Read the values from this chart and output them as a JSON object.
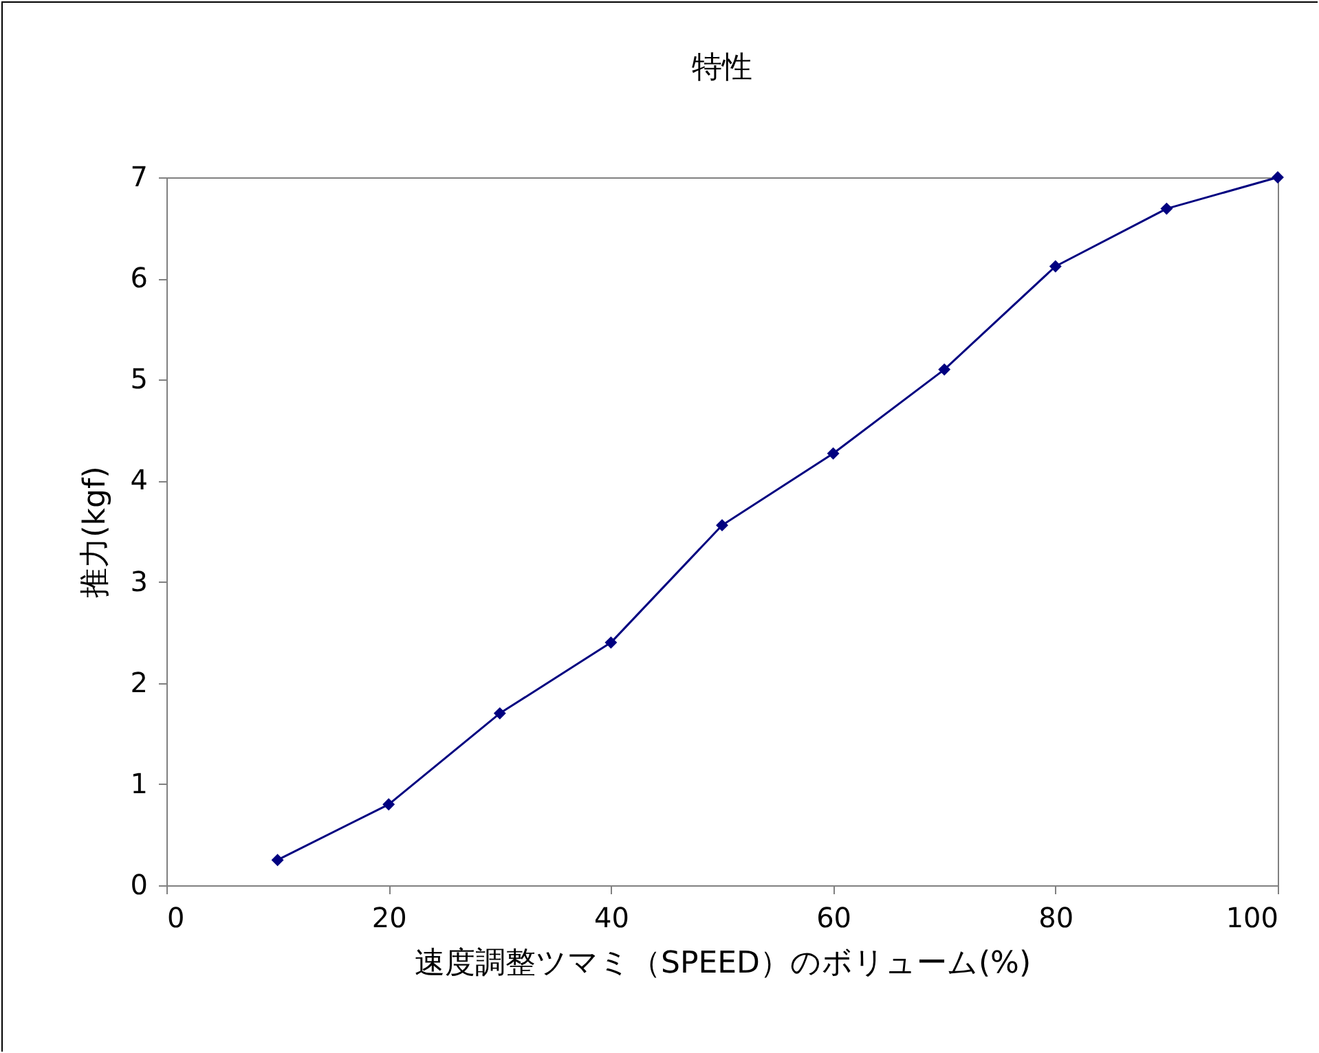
{
  "chart_data": {
    "type": "line",
    "title": "特性",
    "xlabel": "速度調整ツマミ（SPEED）のボリューム(%)",
    "ylabel": "推力(kgf)",
    "x": [
      10,
      20,
      30,
      40,
      50,
      60,
      70,
      80,
      90,
      100
    ],
    "series": [
      {
        "color": "#000080",
        "values": [
          0.25,
          0.8,
          1.7,
          2.4,
          3.56,
          4.27,
          5.1,
          6.12,
          6.69,
          7.0
        ]
      }
    ],
    "xlim": [
      0,
      100
    ],
    "xticks": [
      0,
      20,
      40,
      60,
      80,
      100
    ],
    "ylim": [
      0,
      7
    ],
    "yticks": [
      0,
      1,
      2,
      3,
      4,
      5,
      6,
      7
    ],
    "grid": false,
    "marker": "diamond",
    "line_style": "solid"
  }
}
